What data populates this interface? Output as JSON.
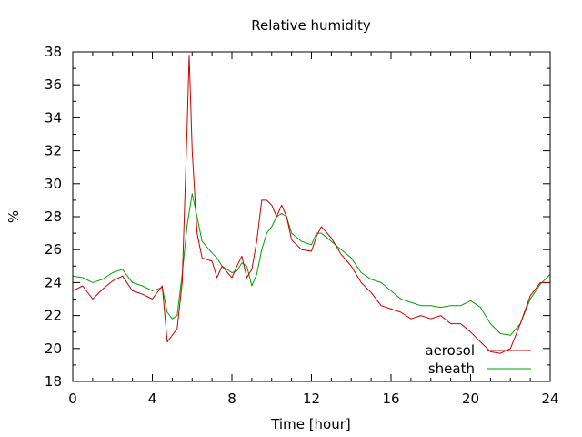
{
  "chart_data": {
    "type": "line",
    "title": "Relative humidity",
    "xlabel": "Time [hour]",
    "ylabel": "%",
    "xlim": [
      0,
      24
    ],
    "ylim": [
      18,
      38
    ],
    "xticks": [
      0,
      4,
      8,
      12,
      16,
      20,
      24
    ],
    "yticks": [
      18,
      20,
      22,
      24,
      26,
      28,
      30,
      32,
      34,
      36,
      38
    ],
    "grid": false,
    "legend_position": "bottom-right",
    "series": [
      {
        "name": "aerosol",
        "color": "#cc0000",
        "x": [
          0,
          0.5,
          1,
          1.5,
          2,
          2.5,
          3,
          3.5,
          4,
          4.5,
          4.75,
          5,
          5.25,
          5.5,
          5.75,
          5.85,
          6,
          6.25,
          6.5,
          7,
          7.25,
          7.5,
          8,
          8.25,
          8.5,
          8.75,
          9,
          9.25,
          9.5,
          9.75,
          10,
          10.25,
          10.5,
          10.75,
          11,
          11.5,
          12,
          12.25,
          12.5,
          13,
          13.5,
          14,
          14.5,
          15,
          15.5,
          16,
          16.5,
          17,
          17.5,
          18,
          18.5,
          19,
          19.5,
          20,
          20.5,
          21,
          21.5,
          22,
          22.5,
          23,
          23.5,
          24
        ],
        "y": [
          23.5,
          23.8,
          23.0,
          23.6,
          24.1,
          24.4,
          23.5,
          23.3,
          23.0,
          23.8,
          20.4,
          20.8,
          21.2,
          24.0,
          33.5,
          37.8,
          32.0,
          27.0,
          25.5,
          25.3,
          24.3,
          25.0,
          24.3,
          25.0,
          25.6,
          24.3,
          24.8,
          26.5,
          29.0,
          29.0,
          28.7,
          28.0,
          28.7,
          28.0,
          26.6,
          26.0,
          25.9,
          26.8,
          27.4,
          26.7,
          25.7,
          25.0,
          24.0,
          23.4,
          22.6,
          22.4,
          22.2,
          21.8,
          22.0,
          21.8,
          22.0,
          21.5,
          21.5,
          21.0,
          20.4,
          19.8,
          19.7,
          20.0,
          21.5,
          23.2,
          24.0,
          24.0
        ]
      },
      {
        "name": "sheath",
        "color": "#00a000",
        "x": [
          0,
          0.5,
          1,
          1.5,
          2,
          2.5,
          3,
          3.5,
          4,
          4.5,
          4.75,
          5,
          5.25,
          5.5,
          5.75,
          6,
          6.25,
          6.5,
          7,
          7.25,
          7.5,
          8,
          8.25,
          8.5,
          8.75,
          9,
          9.25,
          9.5,
          9.75,
          10,
          10.25,
          10.5,
          10.75,
          11,
          11.5,
          12,
          12.25,
          12.5,
          13,
          13.5,
          14,
          14.5,
          15,
          15.5,
          16,
          16.5,
          17,
          17.5,
          18,
          18.5,
          19,
          19.5,
          20,
          20.5,
          21,
          21.5,
          22,
          22.5,
          23,
          23.5,
          24
        ],
        "y": [
          24.4,
          24.3,
          24.0,
          24.2,
          24.6,
          24.8,
          24.0,
          23.8,
          23.5,
          23.7,
          22.2,
          21.8,
          22.0,
          24.5,
          27.5,
          29.4,
          28.0,
          26.5,
          25.8,
          25.5,
          25.0,
          24.6,
          24.7,
          25.2,
          25.0,
          23.8,
          24.5,
          26.0,
          27.0,
          27.4,
          28.0,
          28.2,
          28.0,
          27.0,
          26.5,
          26.3,
          27.0,
          27.0,
          26.5,
          26.0,
          25.5,
          24.6,
          24.2,
          24.0,
          23.5,
          23.0,
          22.8,
          22.6,
          22.6,
          22.5,
          22.6,
          22.6,
          22.9,
          22.5,
          21.5,
          20.9,
          20.8,
          21.5,
          23.0,
          23.9,
          24.5
        ]
      }
    ]
  }
}
